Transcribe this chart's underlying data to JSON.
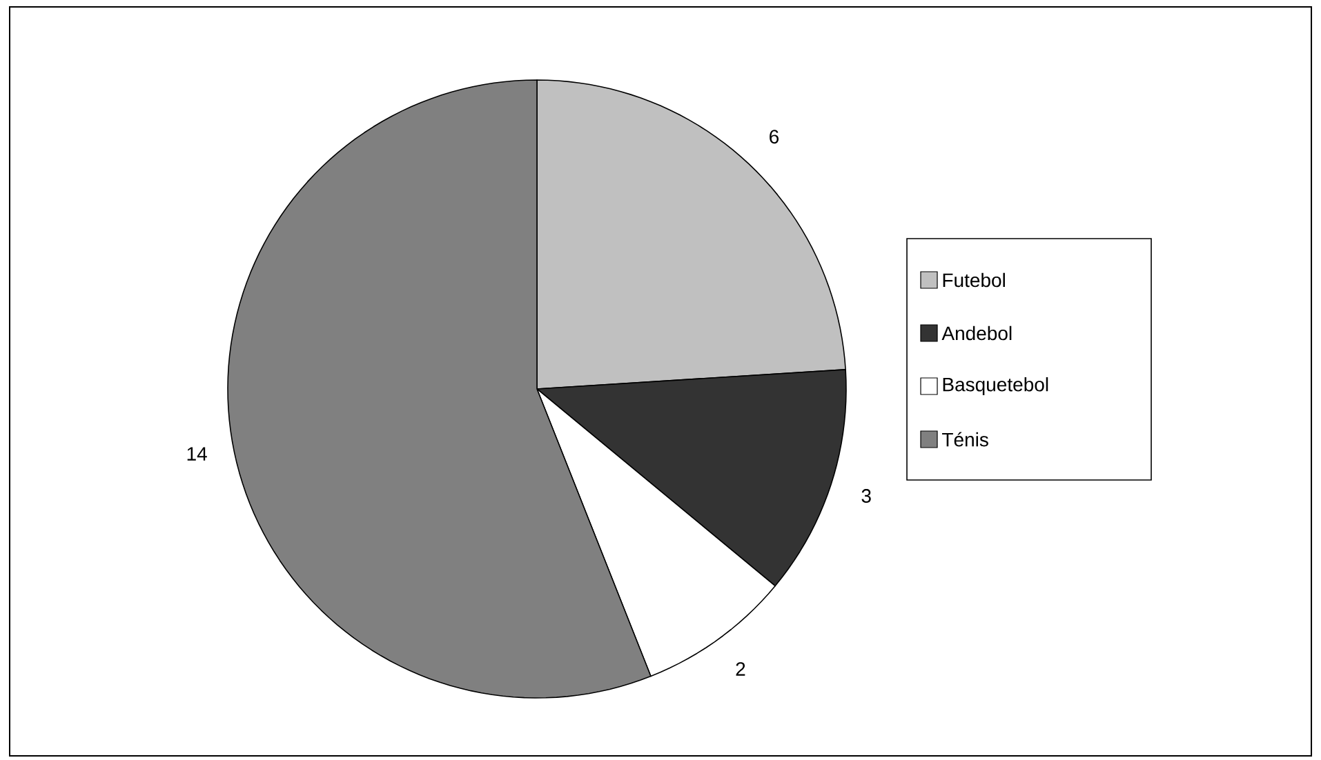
{
  "chart_data": {
    "type": "pie",
    "categories": [
      "Futebol",
      "Andebol",
      "Basquetebol",
      "Ténis"
    ],
    "values": [
      6,
      3,
      2,
      14
    ],
    "colors": [
      "#c0c0c0",
      "#333333",
      "#ffffff",
      "#808080"
    ],
    "data_labels": true,
    "legend": "right"
  }
}
